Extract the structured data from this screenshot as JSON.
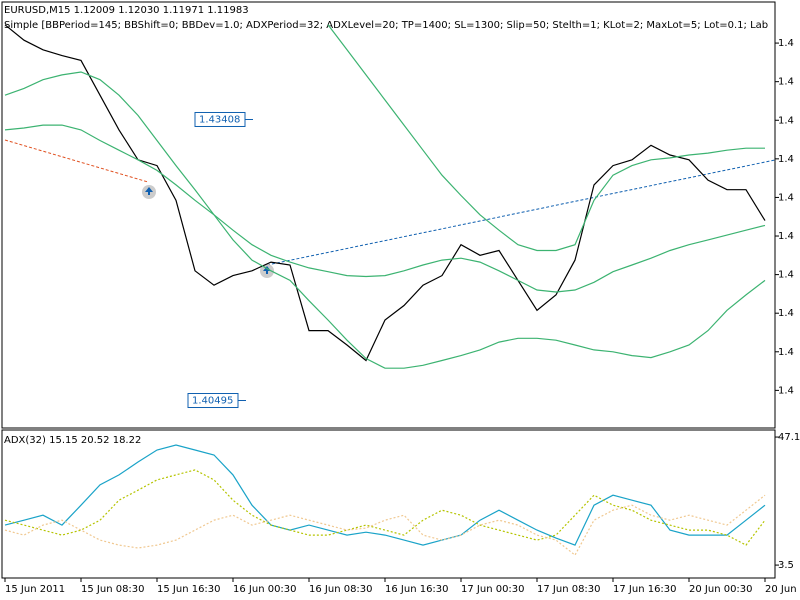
{
  "chart_data": [
    {
      "type": "line",
      "title": "EURUSD,M15  1.12009 1.12030 1.11971 1.11983",
      "subtitle": "Simple [BBPeriod=145; BBShift=0; BBDev=1.0; ADXPeriod=32; ADXLevel=20; TP=1400; SL=1300; Slip=50; Stelth=1; KLot=2; MaxLot=5; Lot=0.1; Lab",
      "ylim": [
        1.4021,
        1.4446
      ],
      "yticks": [
        {
          "value": 1.442,
          "label": "1.4"
        },
        {
          "value": 1.438,
          "label": "1.4"
        },
        {
          "value": 1.434,
          "label": "1.4"
        },
        {
          "value": 1.43,
          "label": "1.4"
        },
        {
          "value": 1.426,
          "label": "1.4"
        },
        {
          "value": 1.422,
          "label": "1.4"
        },
        {
          "value": 1.418,
          "label": "1.4"
        },
        {
          "value": 1.414,
          "label": "1.4"
        },
        {
          "value": 1.41,
          "label": "1.4"
        },
        {
          "value": 1.406,
          "label": "1.4"
        }
      ],
      "price_labels": [
        1.43408,
        1.40495
      ],
      "grid": false,
      "series": [
        {
          "color": "#000000",
          "dashed": false,
          "values": [
            1.4439,
            1.4423,
            1.4413,
            1.4407,
            1.4402,
            1.4366,
            1.433,
            1.4299,
            1.4293,
            1.4257,
            1.4184,
            1.4169,
            1.4179,
            1.4184,
            1.4193,
            1.419,
            1.4122,
            1.4122,
            1.4107,
            1.4091,
            1.4133,
            1.4148,
            1.4169,
            1.4179,
            1.4211,
            1.42,
            1.4205,
            1.4174,
            1.4143,
            1.4159,
            1.4195,
            1.4273,
            1.4293,
            1.4299,
            1.4314,
            1.4304,
            1.4299,
            1.4278,
            1.4268,
            1.4268,
            1.4236
          ]
        },
        {
          "color": "#3cb371",
          "dashed": false,
          "values": [
            null,
            null,
            null,
            null,
            null,
            null,
            null,
            null,
            null,
            null,
            null,
            null,
            null,
            null,
            null,
            null,
            null,
            1.4439,
            1.4413,
            1.4387,
            1.4361,
            1.4335,
            1.4309,
            1.4283,
            1.4262,
            1.4242,
            1.4226,
            1.4211,
            1.4205,
            1.4205,
            1.4211,
            1.4257,
            1.4283,
            1.4293,
            1.4299,
            1.4301,
            1.4304,
            1.4306,
            1.4309,
            1.4311,
            1.4311
          ]
        },
        {
          "color": "#3cb371",
          "dashed": false,
          "values": [
            1.433,
            1.4332,
            1.4335,
            1.4335,
            1.433,
            1.4319,
            1.4309,
            1.4299,
            1.4288,
            1.4273,
            1.4257,
            1.4242,
            1.4226,
            1.4211,
            1.42,
            1.4193,
            1.4187,
            1.4183,
            1.4179,
            1.4178,
            1.4179,
            1.4184,
            1.419,
            1.4195,
            1.4197,
            1.4193,
            1.4184,
            1.4174,
            1.4164,
            1.4162,
            1.4164,
            1.4172,
            1.4183,
            1.419,
            1.4197,
            1.4205,
            1.4211,
            1.4216,
            1.4221,
            1.4226,
            1.4231
          ]
        },
        {
          "color": "#3cb371",
          "dashed": false,
          "values": [
            1.4366,
            1.4373,
            1.4382,
            1.4387,
            1.439,
            1.4382,
            1.4366,
            1.4345,
            1.4319,
            1.4293,
            1.4268,
            1.4242,
            1.4216,
            1.4195,
            1.4184,
            1.4174,
            1.4153,
            1.4133,
            1.4112,
            1.4093,
            1.4083,
            1.4083,
            1.4086,
            1.4091,
            1.4096,
            1.4102,
            1.411,
            1.4114,
            1.4114,
            1.4112,
            1.4107,
            1.4102,
            1.41,
            1.4096,
            1.4094,
            1.41,
            1.4107,
            1.4122,
            1.4143,
            1.4159,
            1.4174
          ]
        }
      ]
    },
    {
      "type": "line",
      "title": "ADX(32) 15.15 20.52 18.22",
      "ylim": [
        -0.9,
        49.5
      ],
      "yticks": [
        47.1,
        3.5
      ],
      "grid": false,
      "categories": [
        "15 Jun 2011",
        null,
        null,
        null,
        "15 Jun 08:30",
        null,
        null,
        null,
        "15 Jun 16:30",
        null,
        null,
        null,
        "16 Jun 00:30",
        null,
        null,
        null,
        "16 Jun 08:30",
        null,
        null,
        null,
        "16 Jun 16:30",
        null,
        null,
        null,
        "17 Jun 00:30",
        null,
        null,
        null,
        "17 Jun 08:30",
        null,
        null,
        null,
        "17 Jun 16:30",
        null,
        null,
        null,
        "20 Jun 00:30",
        null,
        null,
        null,
        "20 Jun"
      ],
      "series": [
        {
          "color": "#1aa3c8",
          "dashed": false,
          "values": [
            17.1,
            18.8,
            20.5,
            17.1,
            23.9,
            30.8,
            34.2,
            38.6,
            42.7,
            44.4,
            42.7,
            41.0,
            34.2,
            23.9,
            17.1,
            15.4,
            17.1,
            15.4,
            13.7,
            14.7,
            13.7,
            12.0,
            10.3,
            12.0,
            13.7,
            18.8,
            22.2,
            18.8,
            15.4,
            12.7,
            10.3,
            23.9,
            27.3,
            25.6,
            23.9,
            15.4,
            13.7,
            13.7,
            13.7,
            18.8,
            23.9
          ]
        },
        {
          "color": "#b5c400",
          "dashed": true,
          "values": [
            18.8,
            17.1,
            15.4,
            13.7,
            15.4,
            18.8,
            25.6,
            29.0,
            32.5,
            34.2,
            35.9,
            32.5,
            25.6,
            20.5,
            17.1,
            15.4,
            13.7,
            13.7,
            15.4,
            17.1,
            15.4,
            13.7,
            18.8,
            22.2,
            20.5,
            17.1,
            15.4,
            13.7,
            12.0,
            13.7,
            20.5,
            27.3,
            23.9,
            22.2,
            18.8,
            17.1,
            15.4,
            15.4,
            13.7,
            10.3,
            18.8
          ]
        },
        {
          "color": "#f0c890",
          "dashed": true,
          "values": [
            15.4,
            13.7,
            17.1,
            18.8,
            15.4,
            12.0,
            10.3,
            9.3,
            10.3,
            12.0,
            15.4,
            18.8,
            20.5,
            17.1,
            18.8,
            20.5,
            18.8,
            17.1,
            15.4,
            16.1,
            18.8,
            20.5,
            13.7,
            12.0,
            13.7,
            17.1,
            18.8,
            17.1,
            13.7,
            12.0,
            6.9,
            18.8,
            22.2,
            23.9,
            20.5,
            18.8,
            20.5,
            18.8,
            17.1,
            22.2,
            27.3
          ]
        }
      ]
    }
  ]
}
